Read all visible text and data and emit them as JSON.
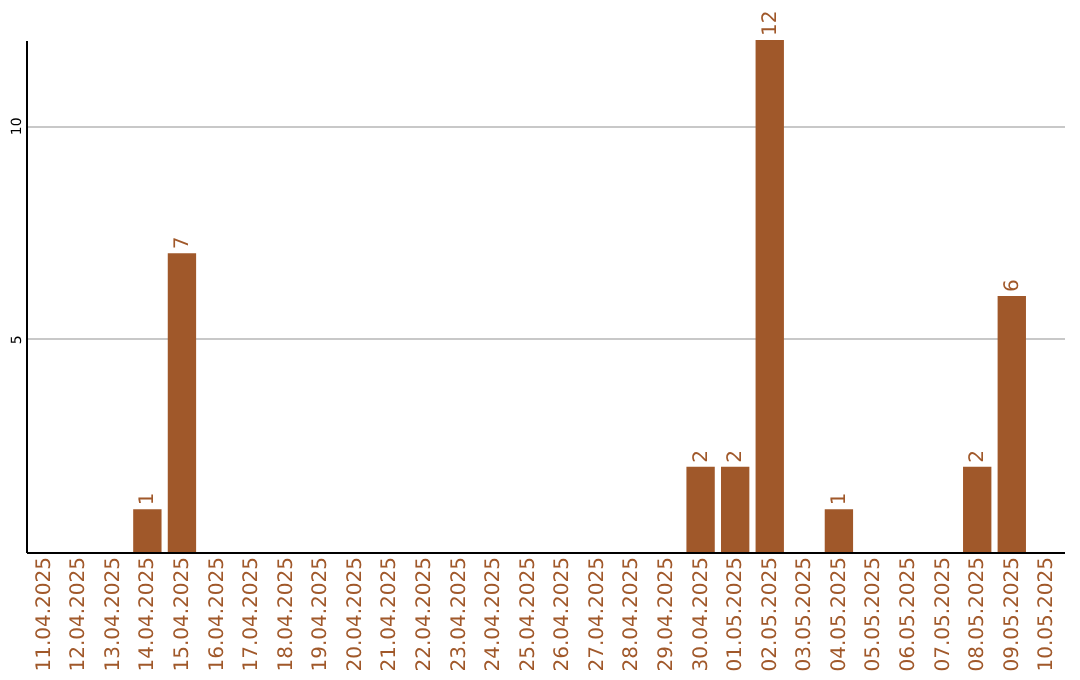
{
  "chart_data": {
    "type": "bar",
    "categories": [
      "11.04.2025",
      "12.04.2025",
      "13.04.2025",
      "14.04.2025",
      "15.04.2025",
      "16.04.2025",
      "17.04.2025",
      "18.04.2025",
      "19.04.2025",
      "20.04.2025",
      "21.04.2025",
      "22.04.2025",
      "23.04.2025",
      "24.04.2025",
      "25.04.2025",
      "26.04.2025",
      "27.04.2025",
      "28.04.2025",
      "29.04.2025",
      "30.04.2025",
      "01.05.2025",
      "02.05.2025",
      "03.05.2025",
      "04.05.2025",
      "05.05.2025",
      "06.05.2025",
      "07.05.2025",
      "08.05.2025",
      "09.05.2025",
      "10.05.2025"
    ],
    "values": [
      0,
      0,
      0,
      1,
      7,
      0,
      0,
      0,
      0,
      0,
      0,
      0,
      0,
      0,
      0,
      0,
      0,
      0,
      0,
      2,
      2,
      12,
      0,
      1,
      0,
      0,
      0,
      2,
      6,
      0
    ],
    "value_labels": [
      null,
      null,
      null,
      "1",
      "7",
      null,
      null,
      null,
      null,
      null,
      null,
      null,
      null,
      null,
      null,
      null,
      null,
      null,
      null,
      "2",
      "2",
      "12",
      null,
      "1",
      null,
      null,
      null,
      "2",
      "6",
      null
    ],
    "color": "#a0582a",
    "ylim": [
      0,
      12
    ],
    "yticks": [
      5,
      10
    ],
    "grid": "y"
  }
}
